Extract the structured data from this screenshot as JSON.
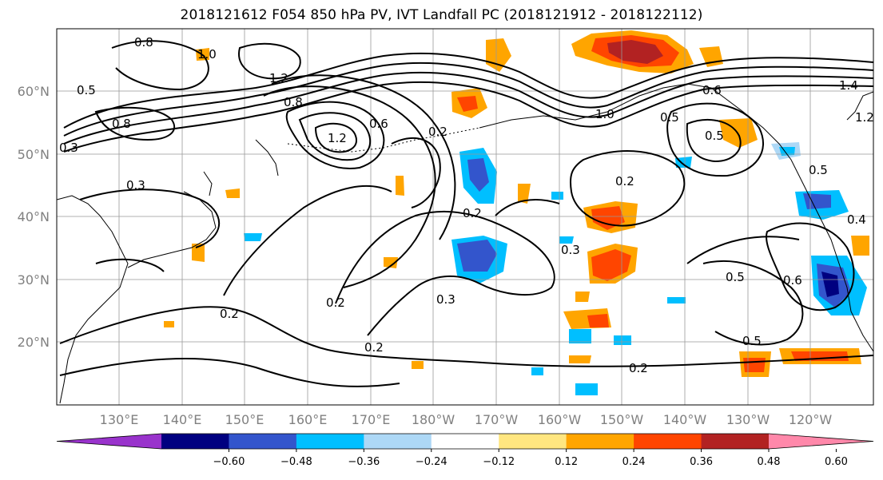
{
  "title": "2018121612 F054 850 hPa PV, IVT Landfall PC (2018121912 - 2018122112)",
  "map": {
    "projection": "PlateCarree",
    "lon_range": [
      "120°E",
      "110°W"
    ],
    "lat_range": [
      "10°N",
      "70°N"
    ],
    "gridlines": true,
    "coastlines": true
  },
  "lon_ticks": [
    "130°E",
    "140°E",
    "150°E",
    "160°E",
    "170°E",
    "180°W",
    "170°W",
    "160°W",
    "150°W",
    "140°W",
    "130°W",
    "120°W"
  ],
  "lat_ticks": [
    "20°N",
    "30°N",
    "40°N",
    "50°N",
    "60°N"
  ],
  "contour_labels": [
    "0.8",
    "1.0",
    "1.2",
    "0.8",
    "0.5",
    "0.3",
    "0.8",
    "1.2",
    "0.6",
    "0.2",
    "0.3",
    "0.2",
    "0.3",
    "0.2",
    "0.2",
    "0.3",
    "0.2",
    "0.2",
    "0.6",
    "0.5",
    "0.2",
    "0.5",
    "0.5",
    "0.6",
    "0.4",
    "0.5",
    "1.4",
    "1.2",
    "1.0",
    "0.5"
  ],
  "colorbar": {
    "ticks": [
      "−0.60",
      "−0.48",
      "−0.36",
      "−0.24",
      "−0.12",
      "0.12",
      "0.24",
      "0.36",
      "0.48",
      "0.60"
    ],
    "colors": [
      "#9933cc",
      "#000080",
      "#3355cc",
      "#00bfff",
      "#add8f6",
      "#ffffff",
      "#ffe680",
      "#ffa500",
      "#ff4500",
      "#b22222",
      "#ff88aa"
    ],
    "extend": "both"
  },
  "palette": {
    "orange": "#ffa500",
    "red_orange": "#ff4500",
    "dark_red": "#b22222",
    "yellow": "#ffe680",
    "deep_sky": "#00bfff",
    "royal_blue": "#3355cc",
    "light_blue": "#add8f6"
  }
}
